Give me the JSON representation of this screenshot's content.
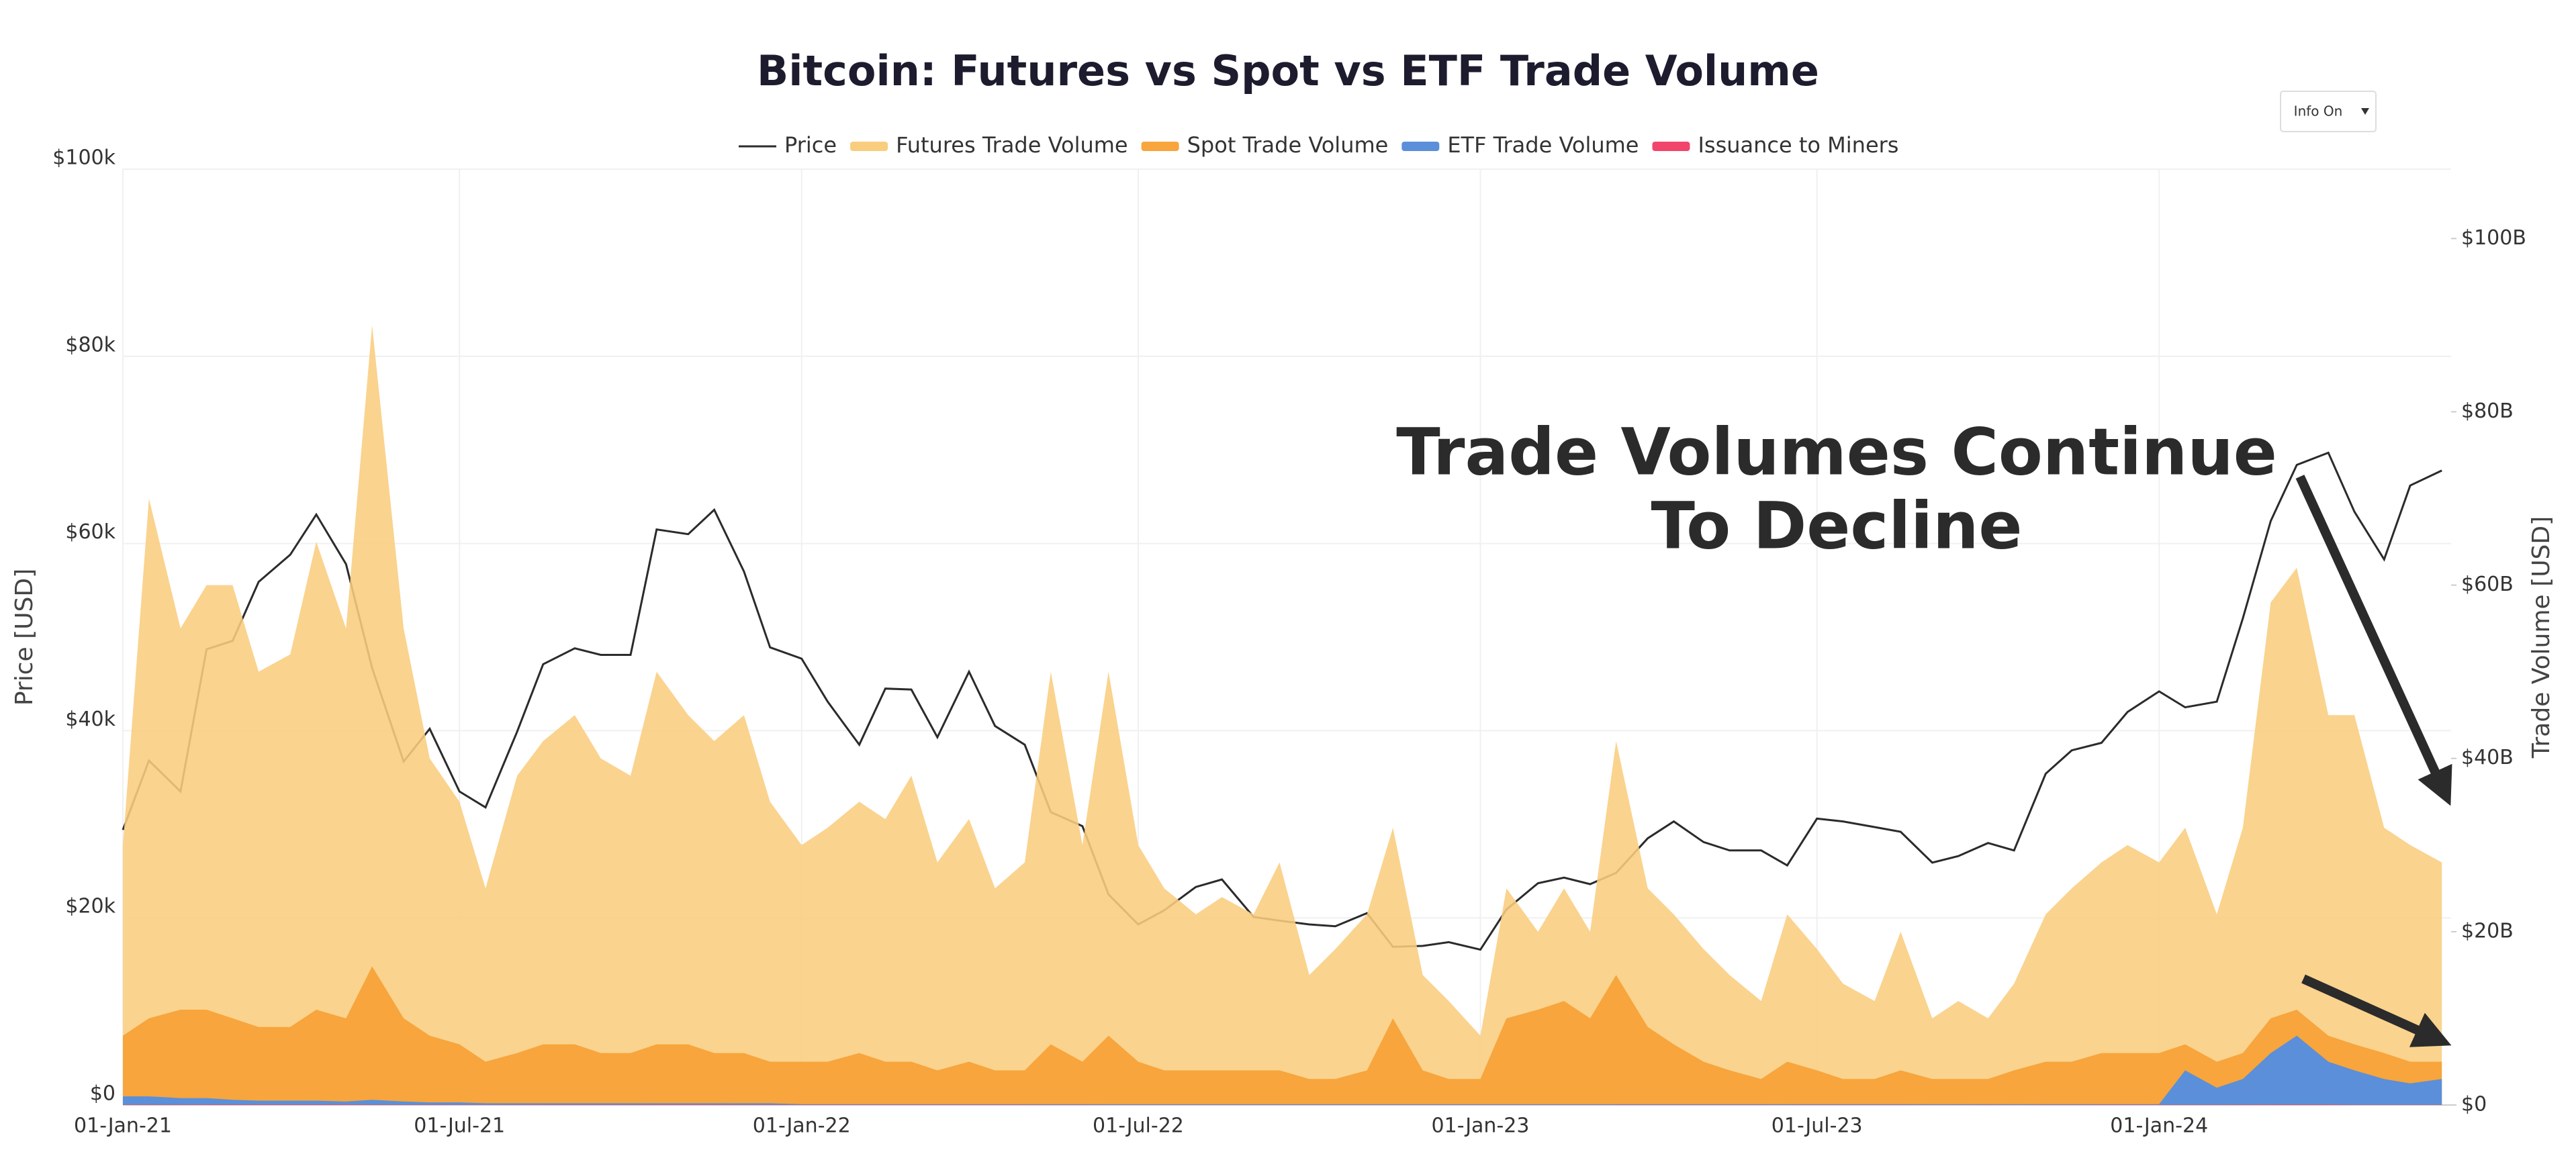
{
  "chart_data": {
    "type": "area",
    "title": "Bitcoin: Futures vs Spot vs ETF Trade Volume",
    "button": "Info On",
    "annotation_lines": [
      "Trade Volumes Continue",
      "To Decline"
    ],
    "ylabel": "Price [USD]",
    "y2label": "Trade Volume [USD]",
    "grid": true,
    "legend": "top",
    "x": [
      "2021-01-01",
      "2021-01-15",
      "2021-02-01",
      "2021-02-15",
      "2021-03-01",
      "2021-03-15",
      "2021-04-01",
      "2021-04-15",
      "2021-05-01",
      "2021-05-15",
      "2021-06-01",
      "2021-06-15",
      "2021-07-01",
      "2021-07-15",
      "2021-08-01",
      "2021-08-15",
      "2021-09-01",
      "2021-09-15",
      "2021-10-01",
      "2021-10-15",
      "2021-11-01",
      "2021-11-15",
      "2021-12-01",
      "2021-12-15",
      "2022-01-01",
      "2022-01-15",
      "2022-02-01",
      "2022-02-15",
      "2022-03-01",
      "2022-03-15",
      "2022-04-01",
      "2022-04-15",
      "2022-05-01",
      "2022-05-15",
      "2022-06-01",
      "2022-06-15",
      "2022-07-01",
      "2022-07-15",
      "2022-08-01",
      "2022-08-15",
      "2022-09-01",
      "2022-09-15",
      "2022-10-01",
      "2022-10-15",
      "2022-11-01",
      "2022-11-15",
      "2022-12-01",
      "2022-12-15",
      "2023-01-01",
      "2023-01-15",
      "2023-02-01",
      "2023-02-15",
      "2023-03-01",
      "2023-03-15",
      "2023-04-01",
      "2023-04-15",
      "2023-05-01",
      "2023-05-15",
      "2023-06-01",
      "2023-06-15",
      "2023-07-01",
      "2023-07-15",
      "2023-08-01",
      "2023-08-15",
      "2023-09-01",
      "2023-09-15",
      "2023-10-01",
      "2023-10-15",
      "2023-11-01",
      "2023-11-15",
      "2023-12-01",
      "2023-12-15",
      "2024-01-01",
      "2024-01-15",
      "2024-02-01",
      "2024-02-15",
      "2024-03-01",
      "2024-03-15",
      "2024-04-01",
      "2024-04-15",
      "2024-05-01",
      "2024-05-15",
      "2024-06-01"
    ],
    "xlim": [
      "2021-01-01",
      "2024-06-06"
    ],
    "xticks": [
      {
        "value": "2021-01-01",
        "label": "01-Jan-21"
      },
      {
        "value": "2021-07-01",
        "label": "01-Jul-21"
      },
      {
        "value": "2022-01-01",
        "label": "01-Jan-22"
      },
      {
        "value": "2022-07-01",
        "label": "01-Jul-22"
      },
      {
        "value": "2023-01-01",
        "label": "01-Jan-23"
      },
      {
        "value": "2023-07-01",
        "label": "01-Jul-23"
      },
      {
        "value": "2024-01-01",
        "label": "01-Jan-24"
      }
    ],
    "ylim": [
      0,
      100
    ],
    "yticks": [
      {
        "value": 0,
        "label": "$0"
      },
      {
        "value": 20,
        "label": "$20k"
      },
      {
        "value": 40,
        "label": "$40k"
      },
      {
        "value": 60,
        "label": "$60k"
      },
      {
        "value": 80,
        "label": "$80k"
      },
      {
        "value": 100,
        "label": "$100k"
      }
    ],
    "y2lim": [
      0,
      108
    ],
    "y2ticks": [
      {
        "value": 0,
        "label": "$0"
      },
      {
        "value": 20,
        "label": "$20B"
      },
      {
        "value": 40,
        "label": "$40B"
      },
      {
        "value": 60,
        "label": "$60B"
      },
      {
        "value": 80,
        "label": "$80B"
      },
      {
        "value": 100,
        "label": "$100B"
      }
    ],
    "series": [
      {
        "name": "Price",
        "color": "#2b2b2b",
        "kind": "line",
        "axis": "y",
        "values": [
          29.4,
          36.8,
          33.5,
          48.7,
          49.6,
          55.9,
          58.8,
          63.1,
          57.8,
          46.7,
          36.7,
          40.2,
          33.5,
          31.8,
          39.9,
          47.1,
          48.8,
          48.1,
          48.1,
          61.5,
          61.0,
          63.6,
          57.0,
          48.9,
          47.7,
          43.1,
          38.5,
          44.5,
          44.4,
          39.3,
          46.3,
          40.5,
          38.5,
          31.3,
          29.8,
          22.5,
          19.3,
          20.8,
          23.3,
          24.1,
          20.1,
          19.7,
          19.3,
          19.1,
          20.5,
          16.9,
          17.0,
          17.4,
          16.6,
          20.9,
          23.7,
          24.3,
          23.6,
          24.8,
          28.5,
          30.3,
          28.1,
          27.2,
          27.2,
          25.6,
          30.6,
          30.3,
          29.7,
          29.2,
          25.9,
          26.6,
          28.0,
          27.2,
          35.4,
          37.9,
          38.7,
          42.0,
          44.2,
          42.5,
          43.1,
          52.0,
          62.4,
          68.4,
          69.7,
          63.4,
          58.3,
          66.2,
          67.8
        ]
      },
      {
        "name": "Futures Trade Volume",
        "color": "#f9cd7e",
        "kind": "area",
        "axis": "y2",
        "values": [
          30,
          70,
          55,
          60,
          60,
          50,
          52,
          65,
          55,
          90,
          55,
          40,
          35,
          25,
          38,
          42,
          45,
          40,
          38,
          50,
          45,
          42,
          45,
          35,
          30,
          32,
          35,
          33,
          38,
          28,
          33,
          25,
          28,
          50,
          30,
          50,
          30,
          25,
          22,
          24,
          22,
          28,
          15,
          18,
          22,
          32,
          15,
          12,
          8,
          25,
          20,
          25,
          20,
          42,
          25,
          22,
          18,
          15,
          12,
          22,
          18,
          14,
          12,
          20,
          10,
          12,
          10,
          14,
          22,
          25,
          28,
          30,
          28,
          32,
          22,
          32,
          58,
          62,
          45,
          45,
          32,
          30,
          28
        ]
      },
      {
        "name": "Spot Trade Volume",
        "color": "#f7a53c",
        "kind": "area",
        "axis": "y2",
        "values": [
          8,
          10,
          11,
          11,
          10,
          9,
          9,
          11,
          10,
          16,
          10,
          8,
          7,
          5,
          6,
          7,
          7,
          6,
          6,
          7,
          7,
          6,
          6,
          5,
          5,
          5,
          6,
          5,
          5,
          4,
          5,
          4,
          4,
          7,
          5,
          8,
          5,
          4,
          4,
          4,
          4,
          4,
          3,
          3,
          4,
          10,
          4,
          3,
          3,
          10,
          11,
          12,
          10,
          15,
          9,
          7,
          5,
          4,
          3,
          5,
          4,
          3,
          3,
          4,
          3,
          3,
          3,
          4,
          5,
          5,
          6,
          6,
          6,
          7,
          5,
          6,
          10,
          11,
          8,
          7,
          6,
          5,
          5
        ]
      },
      {
        "name": "ETF Trade Volume",
        "color": "#5b8fd9",
        "kind": "area",
        "axis": "y2",
        "values": [
          1,
          1,
          0.8,
          0.8,
          0.6,
          0.5,
          0.5,
          0.5,
          0.4,
          0.6,
          0.4,
          0.3,
          0.3,
          0.2,
          0.2,
          0.2,
          0.2,
          0.2,
          0.2,
          0.2,
          0.2,
          0.2,
          0.2,
          0.2,
          0.1,
          0.1,
          0.1,
          0.1,
          0.1,
          0.1,
          0.1,
          0.1,
          0.1,
          0.1,
          0.1,
          0.1,
          0.1,
          0.1,
          0.1,
          0.1,
          0.1,
          0.1,
          0.1,
          0.1,
          0.1,
          0.1,
          0.1,
          0.1,
          0.1,
          0.1,
          0.1,
          0.1,
          0.1,
          0.1,
          0.1,
          0.1,
          0.1,
          0.1,
          0.1,
          0.1,
          0.1,
          0.1,
          0.1,
          0.1,
          0.1,
          0.1,
          0.1,
          0.1,
          0.1,
          0.1,
          0.1,
          0.1,
          0.1,
          4,
          2,
          3,
          6,
          8,
          5,
          4,
          3,
          2.5,
          3
        ]
      },
      {
        "name": "Issuance to Miners",
        "color": "#f2456c",
        "kind": "area",
        "axis": "y2",
        "values": [
          0.04,
          0.05,
          0.05,
          0.06,
          0.06,
          0.06,
          0.06,
          0.06,
          0.06,
          0.05,
          0.04,
          0.04,
          0.03,
          0.03,
          0.04,
          0.05,
          0.05,
          0.05,
          0.05,
          0.06,
          0.06,
          0.06,
          0.05,
          0.05,
          0.04,
          0.04,
          0.04,
          0.04,
          0.04,
          0.04,
          0.04,
          0.04,
          0.04,
          0.03,
          0.03,
          0.02,
          0.02,
          0.02,
          0.02,
          0.02,
          0.02,
          0.02,
          0.02,
          0.02,
          0.02,
          0.02,
          0.02,
          0.02,
          0.02,
          0.02,
          0.02,
          0.02,
          0.02,
          0.02,
          0.03,
          0.03,
          0.03,
          0.03,
          0.03,
          0.02,
          0.03,
          0.03,
          0.03,
          0.03,
          0.02,
          0.02,
          0.03,
          0.02,
          0.03,
          0.03,
          0.04,
          0.04,
          0.04,
          0.04,
          0.04,
          0.05,
          0.06,
          0.06,
          0.06,
          0.03,
          0.03,
          0.03,
          0.03
        ]
      }
    ]
  }
}
